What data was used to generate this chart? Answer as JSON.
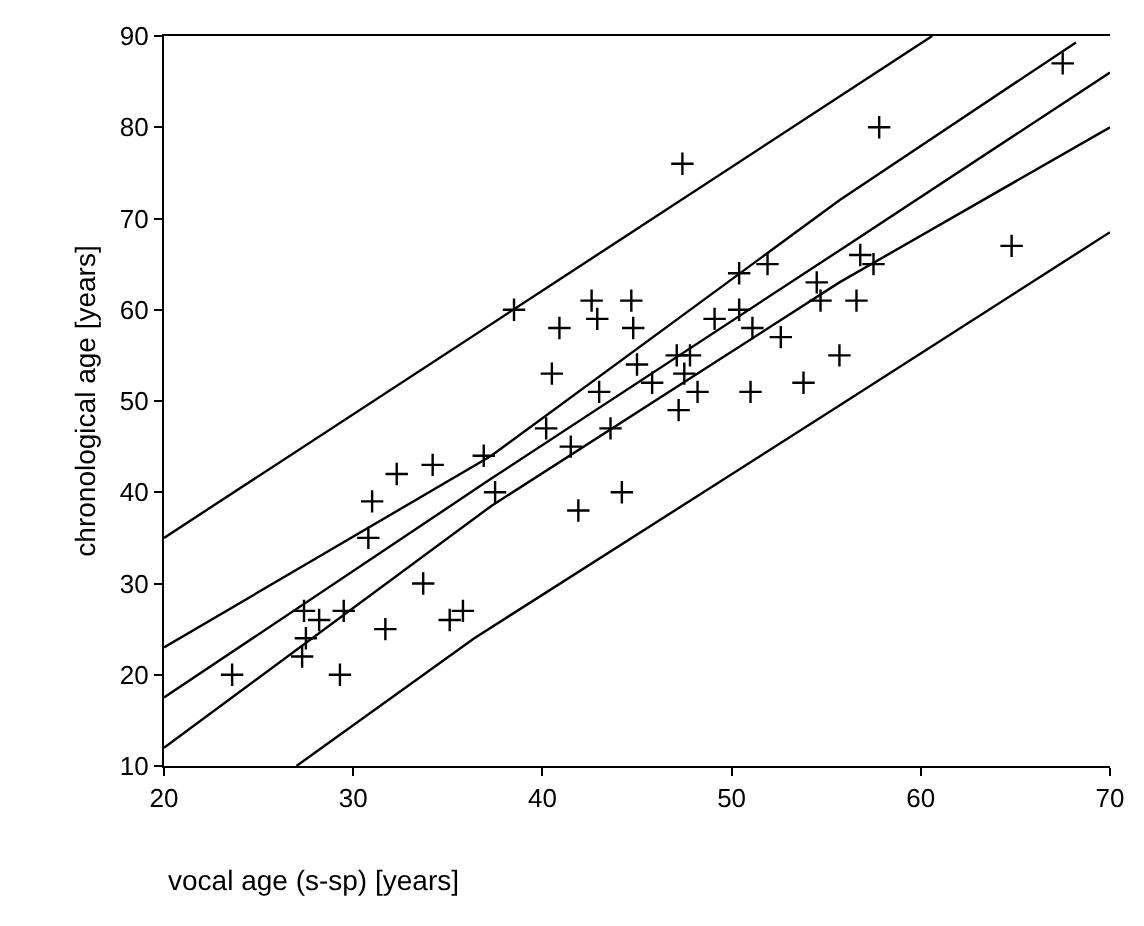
{
  "chart_data": {
    "type": "scatter",
    "xlabel": "vocal age (s-sp) [years]",
    "ylabel": "chronological age [years]",
    "xlim": [
      20,
      70
    ],
    "xticks": [
      20,
      30,
      40,
      50,
      60,
      70
    ],
    "ylim": [
      10,
      90
    ],
    "yticks": [
      10,
      20,
      30,
      40,
      50,
      60,
      70,
      80,
      90
    ],
    "grid": false,
    "series": [
      {
        "type": "scatter",
        "marker": "cross",
        "color": "#000000",
        "x": [
          23.6,
          27.3,
          27.5,
          27.4,
          28.2,
          29.5,
          29.3,
          31.7,
          33.7,
          35.1,
          35.8,
          30.8,
          31.0,
          32.3,
          34.2,
          36.9,
          37.5,
          38.5,
          40.2,
          40.5,
          40.9,
          41.5,
          41.9,
          42.6,
          42.9,
          43.0,
          43.6,
          44.2,
          44.7,
          44.8,
          45.0,
          45.8,
          47.1,
          47.2,
          47.5,
          47.4,
          47.8,
          48.2,
          49.1,
          50.4,
          50.4,
          51.0,
          51.1,
          51.9,
          52.6,
          53.8,
          54.5,
          54.7,
          55.7,
          56.6,
          56.8,
          57.5,
          57.8,
          64.8,
          67.5
        ],
        "values": [
          20,
          22,
          24,
          27,
          26,
          27,
          20,
          25,
          30,
          26,
          27,
          35,
          39,
          42,
          43,
          44,
          40,
          60,
          47,
          53,
          58,
          45,
          38,
          61,
          59,
          51,
          47,
          40,
          61,
          58,
          54,
          52,
          55,
          49,
          53,
          76,
          55,
          51,
          59,
          60,
          64,
          51,
          58,
          65,
          57,
          52,
          63,
          61,
          55,
          61,
          66,
          65,
          80,
          67,
          87
        ]
      },
      {
        "type": "line",
        "marker": "none",
        "color": "#000000",
        "x": [
          20,
          60.6
        ],
        "values": [
          35,
          90
        ]
      },
      {
        "type": "line",
        "marker": "none",
        "color": "#000000",
        "x": [
          20,
          37.3,
          55.7,
          68.2
        ],
        "values": [
          23,
          44,
          72,
          89.3
        ]
      },
      {
        "type": "line",
        "marker": "none",
        "color": "#000000",
        "x": [
          20,
          37.3,
          55.7,
          70
        ],
        "values": [
          17.5,
          41.5,
          66.5,
          86
        ]
      },
      {
        "type": "line",
        "marker": "none",
        "color": "#000000",
        "x": [
          20,
          37.3,
          55.7,
          70
        ],
        "values": [
          12,
          38.5,
          63,
          80
        ]
      },
      {
        "type": "line",
        "marker": "none",
        "color": "#000000",
        "x": [
          27,
          36.4,
          55.7,
          70
        ],
        "values": [
          10,
          24,
          49.5,
          68.5
        ]
      }
    ]
  }
}
